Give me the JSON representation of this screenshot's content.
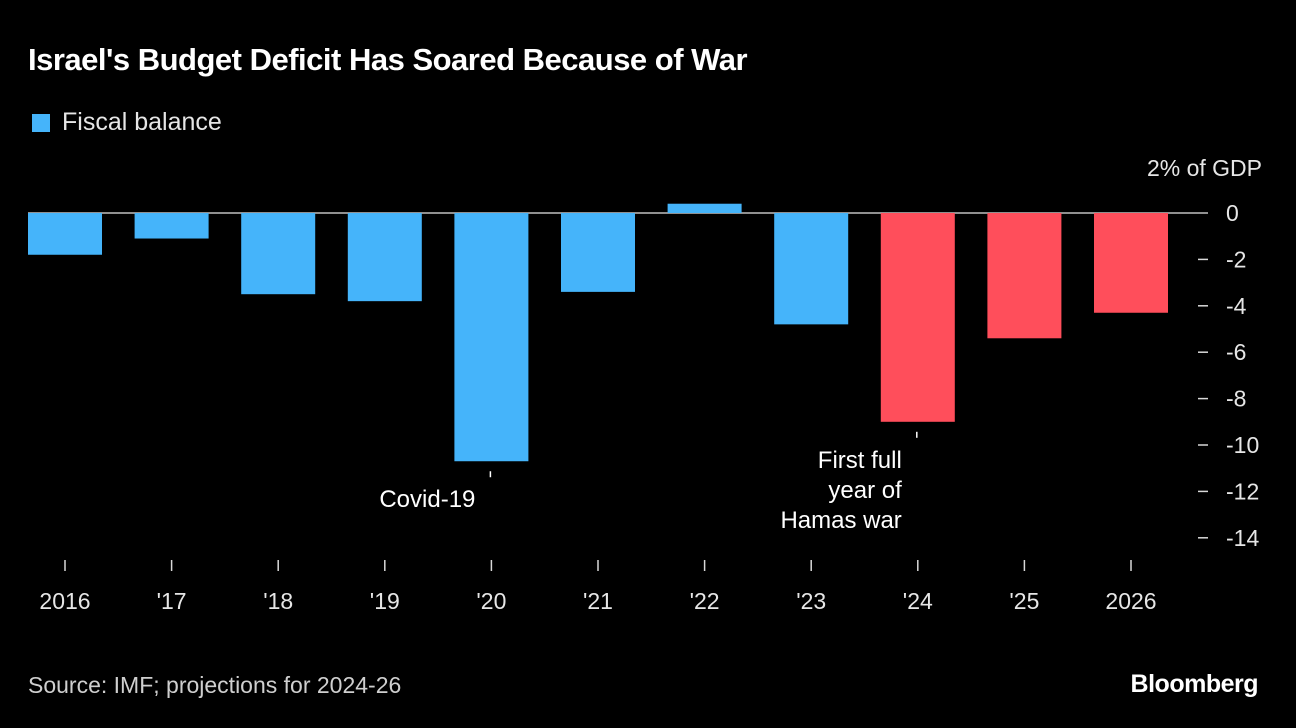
{
  "chart_data": {
    "type": "bar",
    "title": "Israel's Budget Deficit Has Soared Because of War",
    "legend": [
      {
        "label": "Fiscal balance",
        "color": "#45b4fa"
      }
    ],
    "legend_position": "top-left",
    "categories": [
      "2016",
      "'17",
      "'18",
      "'19",
      "'20",
      "'21",
      "'22",
      "'23",
      "'24",
      "'25",
      "2026"
    ],
    "series": [
      {
        "name": "Fiscal balance",
        "values": [
          -1.8,
          -1.1,
          -3.5,
          -3.8,
          -10.7,
          -3.4,
          0.4,
          -4.8,
          -9.0,
          -5.4,
          -4.3
        ],
        "projection": [
          false,
          false,
          false,
          false,
          false,
          false,
          false,
          false,
          true,
          true,
          true
        ]
      }
    ],
    "colors": {
      "actual": "#45b4fa",
      "projection": "#ff4e5b",
      "zero_line": "#bfbfbf",
      "ticks": "#d9d9d9"
    },
    "ylabel": "% of GDP",
    "yaxis_unit_label": "2% of GDP",
    "yaxis_position": "right",
    "ylim": [
      -14,
      2
    ],
    "yticks": [
      0,
      -2,
      -4,
      -6,
      -8,
      -10,
      -12,
      -14
    ],
    "ytick_labels": [
      "0",
      "-2",
      "-4",
      "-6",
      "-8",
      "-10",
      "-12",
      "-14"
    ],
    "grid": false,
    "annotations": [
      {
        "category": "'20",
        "lines": [
          "Covid-19"
        ]
      },
      {
        "category": "'24",
        "lines": [
          "First full",
          "year of",
          "Hamas war"
        ]
      }
    ],
    "source": "Source: IMF; projections for 2024-26",
    "brand": "Bloomberg"
  }
}
